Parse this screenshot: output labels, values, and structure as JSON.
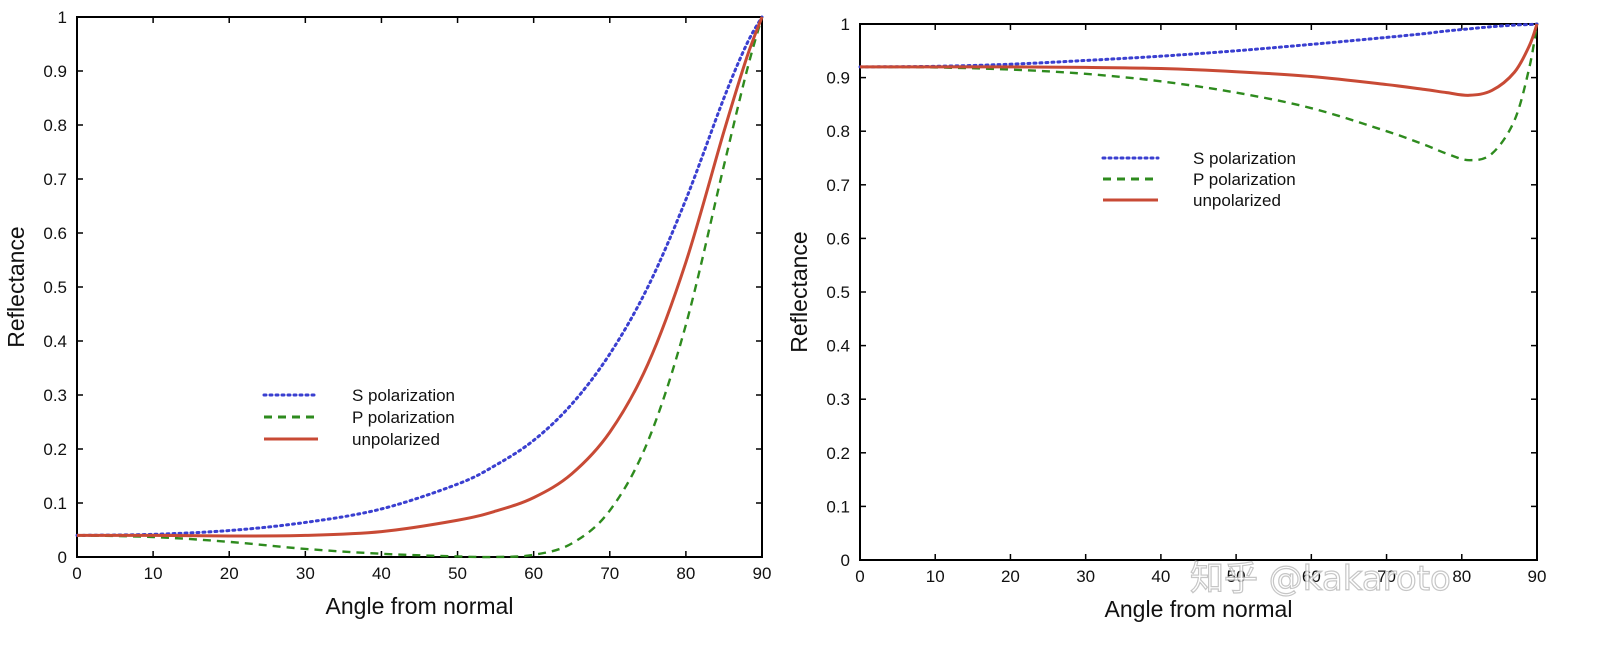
{
  "chart_data": [
    {
      "type": "line",
      "title": "",
      "xlabel": "Angle from normal",
      "ylabel": "Reflectance",
      "xlim": [
        0,
        90
      ],
      "ylim": [
        0,
        1
      ],
      "x_ticks": [
        "0",
        "10",
        "20",
        "30",
        "40",
        "50",
        "60",
        "70",
        "80",
        "90"
      ],
      "y_ticks": [
        "0",
        "0.1",
        "0.2",
        "0.3",
        "0.4",
        "0.5",
        "0.6",
        "0.7",
        "0.8",
        "0.9",
        "1"
      ],
      "grid": false,
      "legend_position": "lower-center",
      "x": [
        0,
        10,
        20,
        30,
        40,
        50,
        55,
        60,
        65,
        70,
        75,
        80,
        85,
        88,
        90
      ],
      "series": [
        {
          "name": "S polarization",
          "style": "dotted",
          "color": "#3a3fd0",
          "values": [
            0.04,
            0.042,
            0.049,
            0.064,
            0.089,
            0.135,
            0.17,
            0.216,
            0.283,
            0.376,
            0.5,
            0.662,
            0.85,
            0.95,
            1.0
          ]
        },
        {
          "name": "P polarization",
          "style": "dashed",
          "color": "#2e8b1e",
          "values": [
            0.04,
            0.037,
            0.028,
            0.015,
            0.006,
            0.001,
            0.0,
            0.004,
            0.025,
            0.086,
            0.214,
            0.43,
            0.725,
            0.9,
            1.0
          ]
        },
        {
          "name": "unpolarized",
          "style": "solid",
          "color": "#c84a35",
          "values": [
            0.04,
            0.04,
            0.039,
            0.04,
            0.047,
            0.068,
            0.085,
            0.11,
            0.154,
            0.231,
            0.357,
            0.546,
            0.788,
            0.925,
            1.0
          ]
        }
      ]
    },
    {
      "type": "line",
      "title": "",
      "xlabel": "Angle from normal",
      "ylabel": "Reflectance",
      "xlim": [
        0,
        90
      ],
      "ylim": [
        0,
        1
      ],
      "x_ticks": [
        "0",
        "10",
        "20",
        "30",
        "40",
        "50",
        "60",
        "70",
        "80",
        "90"
      ],
      "y_ticks": [
        "0",
        "0.1",
        "0.2",
        "0.3",
        "0.4",
        "0.5",
        "0.6",
        "0.7",
        "0.8",
        "0.9",
        "1"
      ],
      "grid": false,
      "legend_position": "upper-center",
      "x": [
        0,
        10,
        20,
        30,
        40,
        50,
        60,
        70,
        75,
        78,
        81,
        84,
        87,
        89,
        90
      ],
      "series": [
        {
          "name": "S polarization",
          "style": "dotted",
          "color": "#3a3fd0",
          "values": [
            0.92,
            0.921,
            0.925,
            0.932,
            0.94,
            0.95,
            0.962,
            0.975,
            0.982,
            0.987,
            0.991,
            0.995,
            0.998,
            0.999,
            1.0
          ]
        },
        {
          "name": "P polarization",
          "style": "dashed",
          "color": "#2e8b1e",
          "values": [
            0.92,
            0.919,
            0.915,
            0.907,
            0.893,
            0.872,
            0.843,
            0.8,
            0.775,
            0.758,
            0.746,
            0.758,
            0.82,
            0.92,
            1.0
          ]
        },
        {
          "name": "unpolarized",
          "style": "solid",
          "color": "#c84a35",
          "values": [
            0.92,
            0.92,
            0.92,
            0.919,
            0.917,
            0.911,
            0.902,
            0.887,
            0.878,
            0.872,
            0.867,
            0.876,
            0.91,
            0.96,
            1.0
          ]
        }
      ]
    }
  ],
  "watermark": {
    "text": "知乎 @kakaroto"
  }
}
